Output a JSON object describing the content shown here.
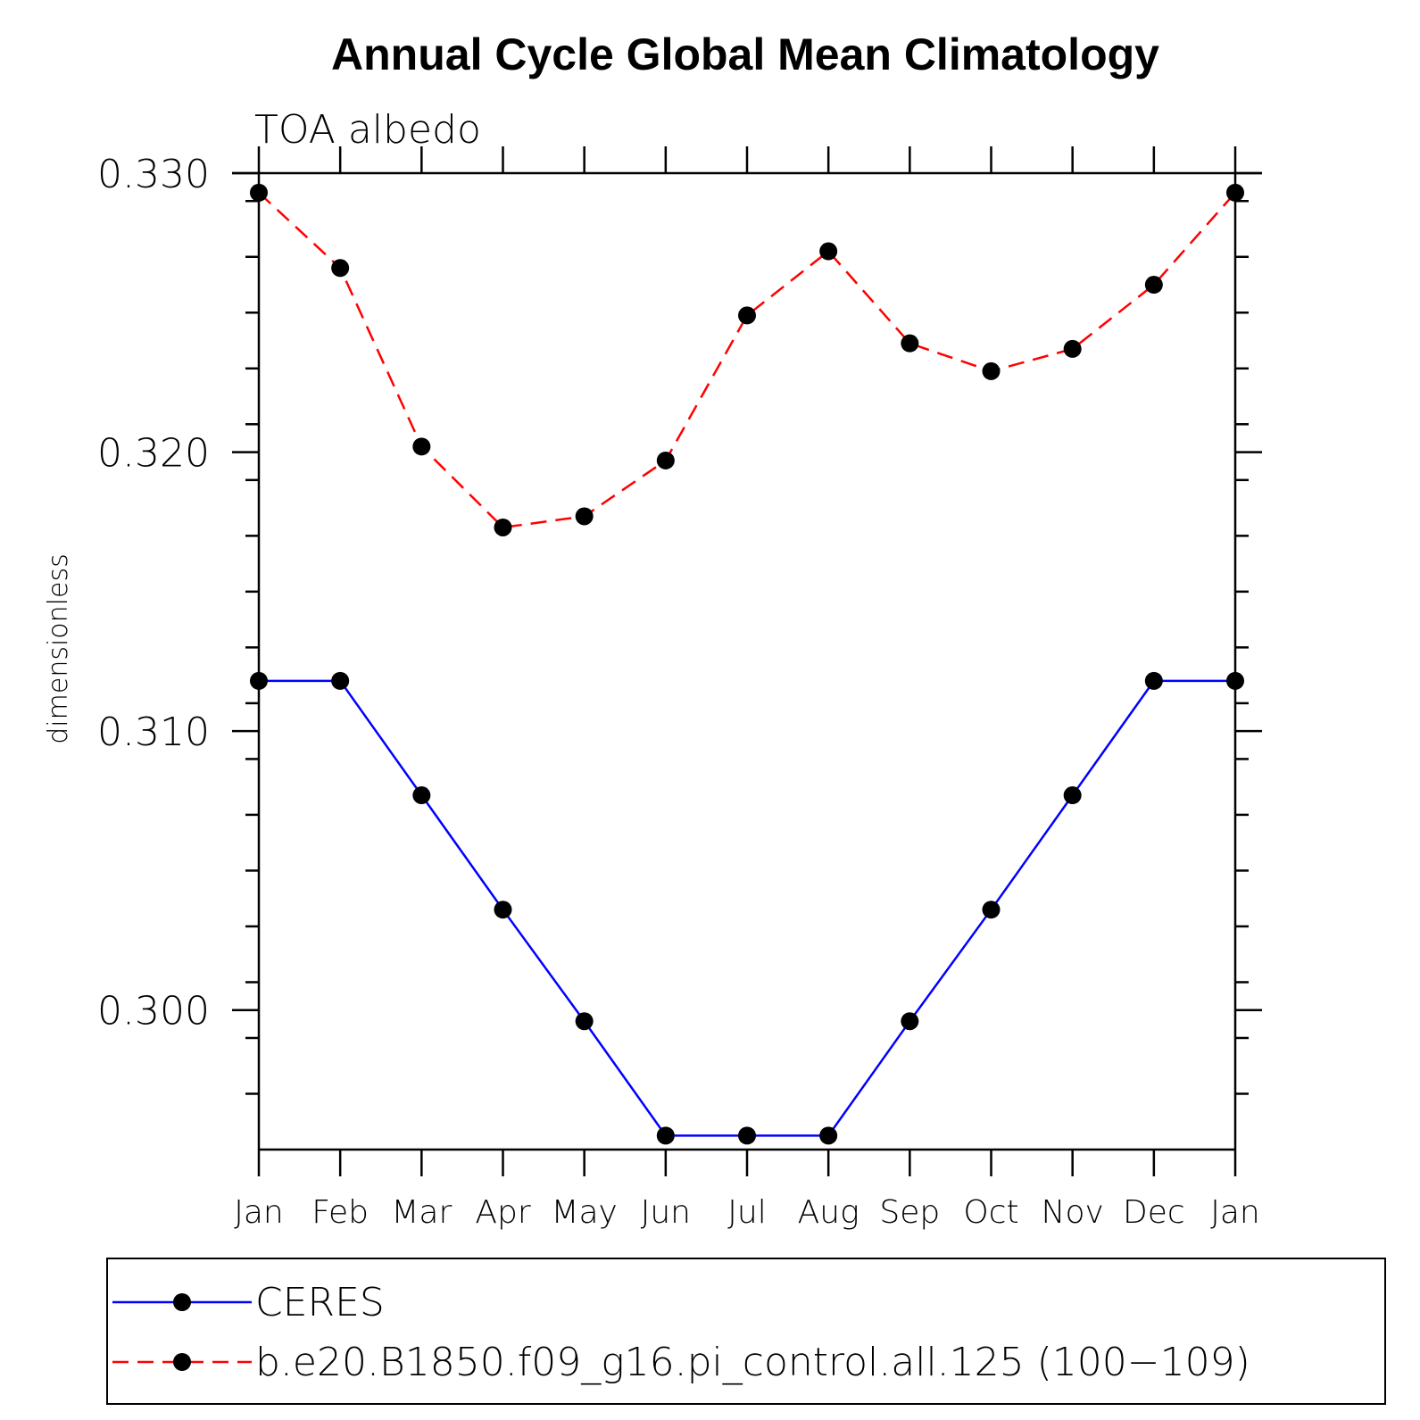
{
  "chart_data": {
    "type": "line",
    "title": "Annual Cycle Global Mean Climatology",
    "subtitle": "TOA albedo",
    "xlabel": "",
    "ylabel": "dimensionless",
    "categories": [
      "Jan",
      "Feb",
      "Mar",
      "Apr",
      "May",
      "Jun",
      "Jul",
      "Aug",
      "Sep",
      "Oct",
      "Nov",
      "Dec",
      "Jan"
    ],
    "ylim": [
      0.295,
      0.33
    ],
    "yticks": [
      0.3,
      0.31,
      0.32,
      0.33
    ],
    "ytick_labels": [
      "0.300",
      "0.310",
      "0.320",
      "0.330"
    ],
    "y_minor_step": 0.002,
    "series": [
      {
        "name": "CERES",
        "color": "#0000ff",
        "dash": "solid",
        "marker": "filled-circle",
        "values": [
          0.3118,
          0.3118,
          0.3077,
          0.3036,
          0.2996,
          0.2955,
          0.2955,
          0.2955,
          0.2996,
          0.3036,
          0.3077,
          0.3118,
          0.3118
        ]
      },
      {
        "name": "b.e20.B1850.f09_g16.pi_control.all.125 (100-109)",
        "color": "#ff0000",
        "dash": "dashed",
        "marker": "filled-circle",
        "values": [
          0.3293,
          0.3266,
          0.3202,
          0.3173,
          0.3177,
          0.3197,
          0.3249,
          0.3272,
          0.3239,
          0.3229,
          0.3237,
          0.326,
          0.3293
        ]
      }
    ],
    "legend": {
      "placement": "bottom",
      "entries": [
        "CERES",
        "b.e20.B1850.f09_g16.pi_control.all.125 (100−109)"
      ]
    },
    "grid": false
  }
}
